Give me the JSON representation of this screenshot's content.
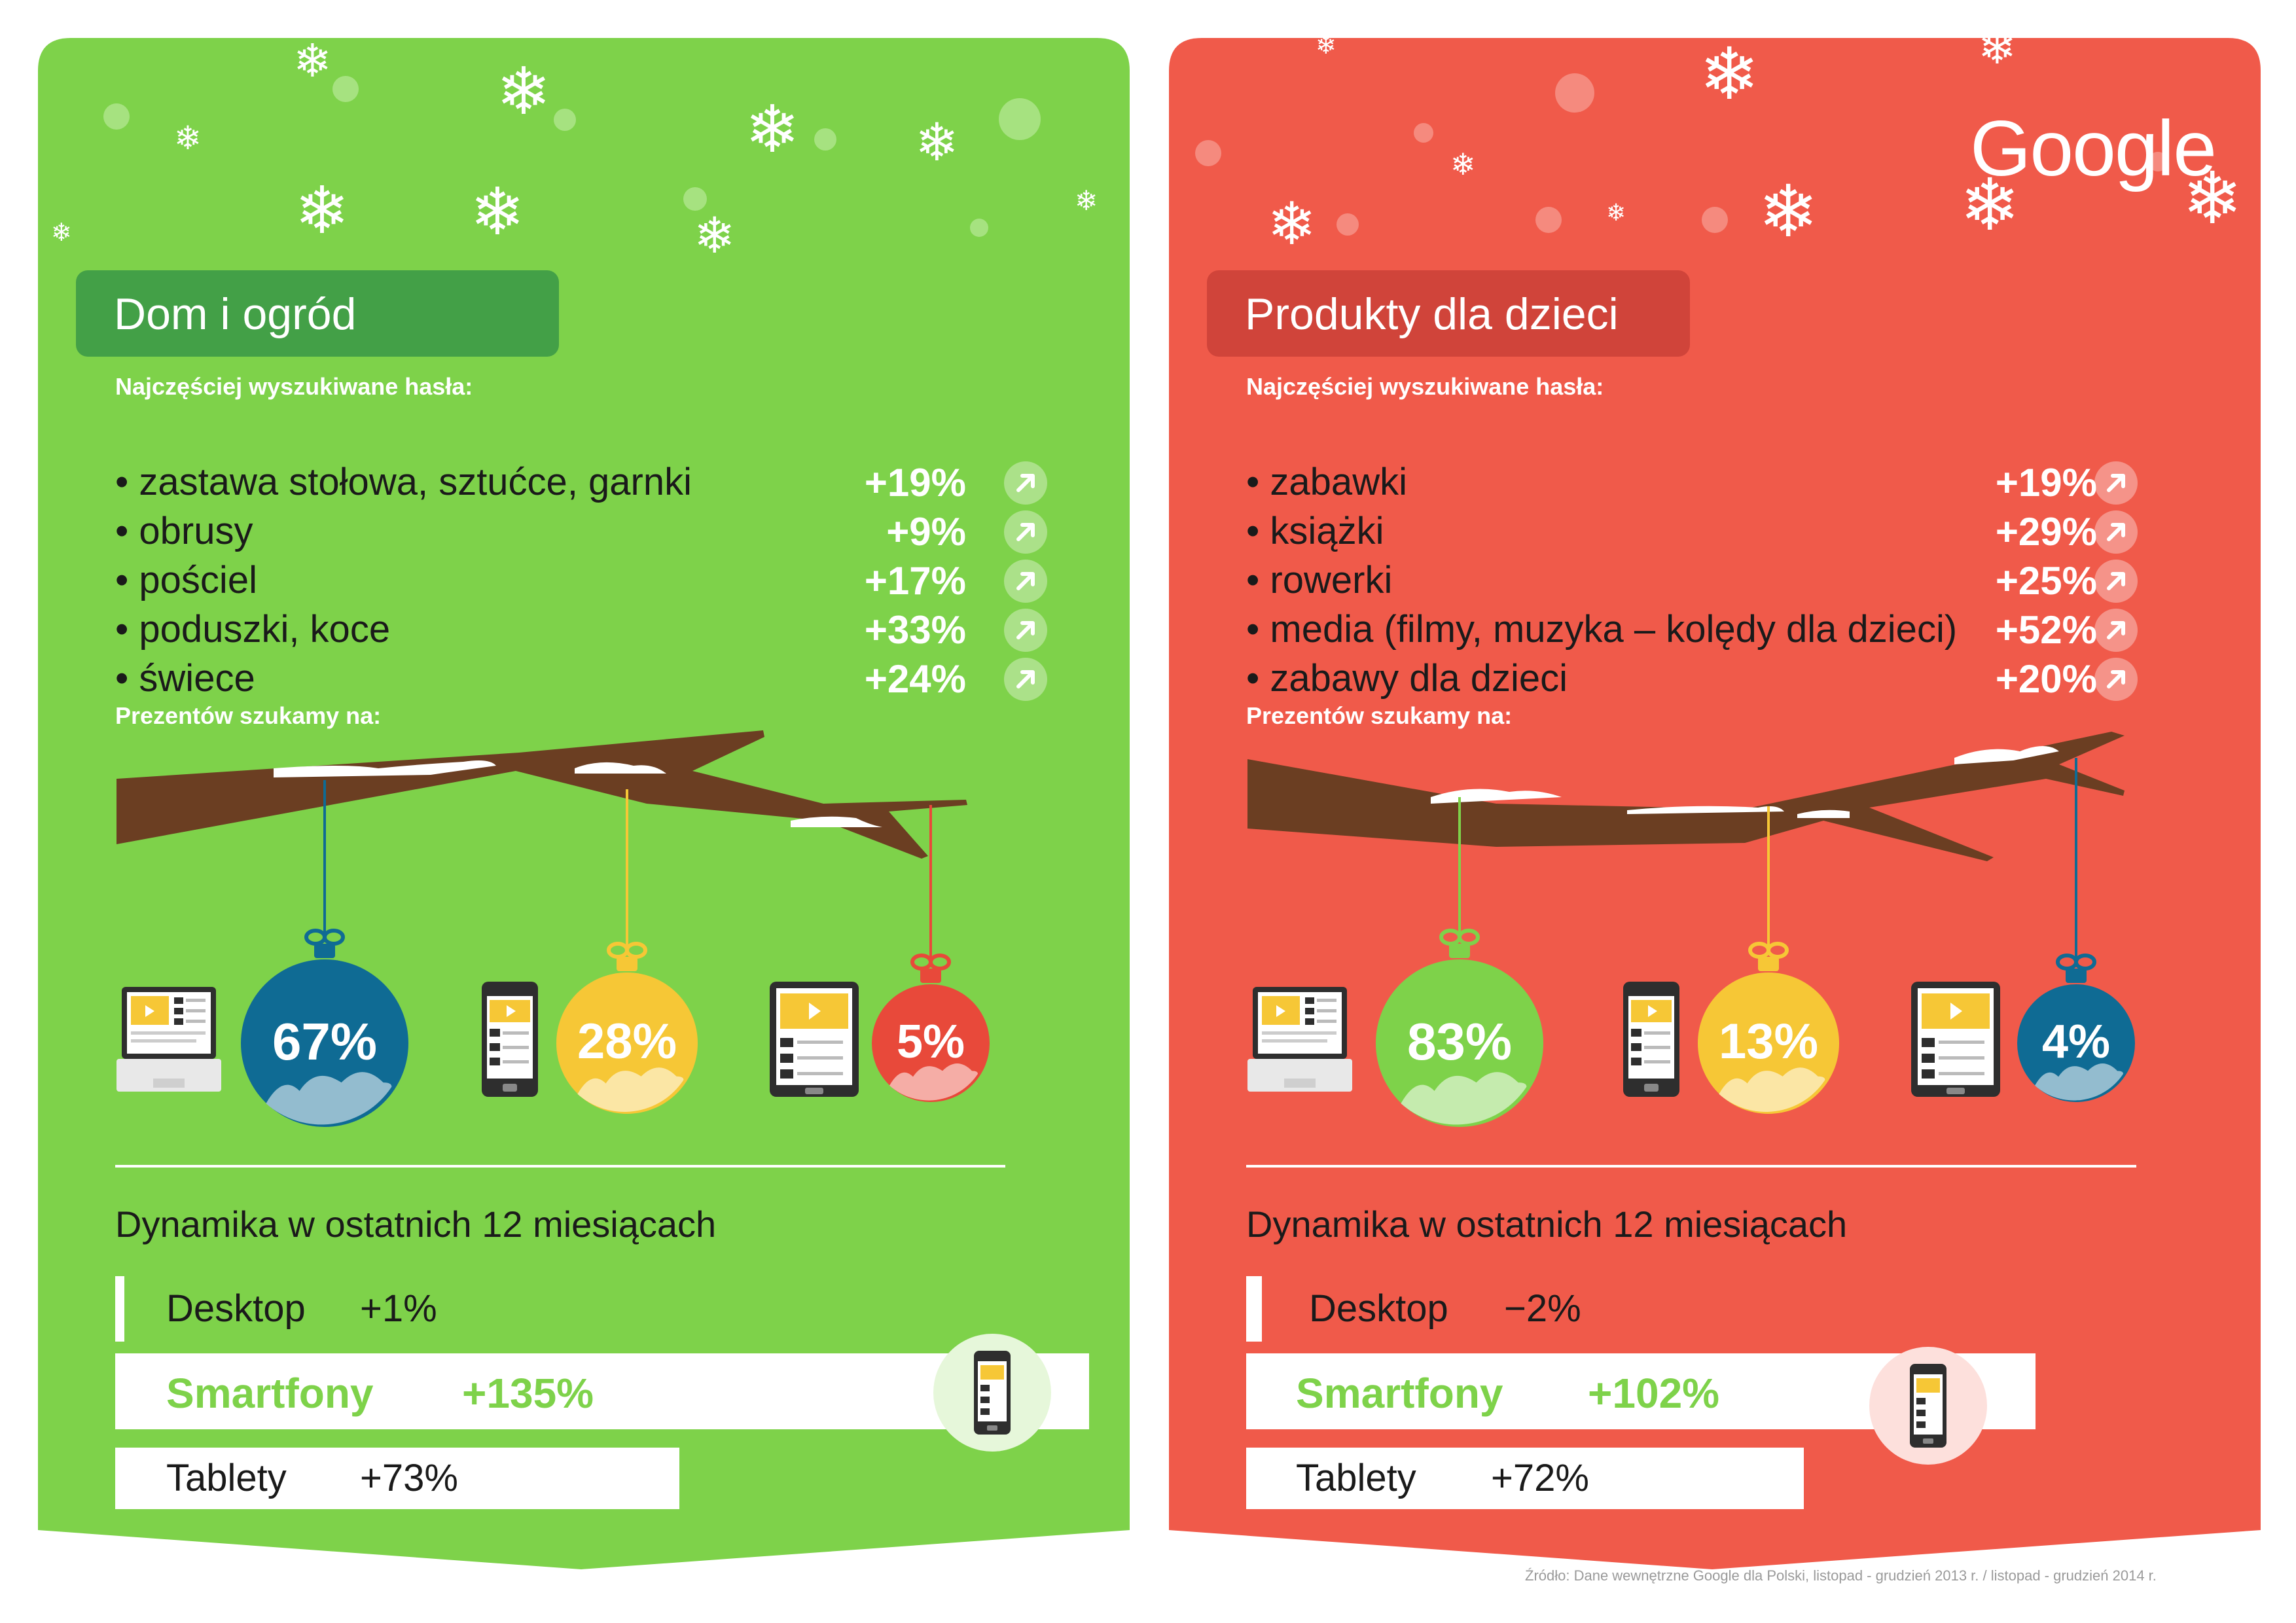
{
  "colors": {
    "green": "#7ed24a",
    "green_dark": "#43a047",
    "red": "#f05a4a",
    "red_dark": "#d0443a",
    "text": "#1a1a1a",
    "white": "#ffffff"
  },
  "logo": "Google",
  "left": {
    "title": "Dom i ogród",
    "keywords_heading": "Najczęściej wyszukiwane hasła:",
    "keywords": [
      {
        "label": "• zastawa stołowa, sztućce, garnki",
        "pct": "+19%"
      },
      {
        "label": "• obrusy",
        "pct": "+9%"
      },
      {
        "label": "• pościel",
        "pct": "+17%"
      },
      {
        "label": "• poduszki, koce",
        "pct": "+33%"
      },
      {
        "label": "• świece",
        "pct": "+24%"
      }
    ],
    "devices_heading": "Prezentów szukamy na:",
    "devices": [
      {
        "device": "laptop-icon",
        "pct": "67%",
        "value": 67,
        "color": "#0f6b94"
      },
      {
        "device": "smartphone-icon",
        "pct": "28%",
        "value": 28,
        "color": "#f6c736"
      },
      {
        "device": "tablet-icon",
        "pct": "5%",
        "value": 5,
        "color": "#e8493a"
      }
    ],
    "dynamics_heading": "Dynamika w ostatnich 12 miesiącach",
    "dynamics": [
      {
        "label": "Desktop",
        "value": "+1%"
      },
      {
        "label": "Smartfony",
        "value": "+135%"
      },
      {
        "label": "Tablety",
        "value": "+73%"
      }
    ]
  },
  "right": {
    "title": "Produkty dla dzieci",
    "keywords_heading": "Najczęściej wyszukiwane hasła:",
    "keywords": [
      {
        "label": "• zabawki",
        "pct": "+19%"
      },
      {
        "label": "• książki",
        "pct": "+29%"
      },
      {
        "label": "• rowerki",
        "pct": "+25%"
      },
      {
        "label": "• media (filmy, muzyka – kolędy dla dzieci)",
        "pct": "+52%"
      },
      {
        "label": "• zabawy dla dzieci",
        "pct": "+20%"
      }
    ],
    "devices_heading": "Prezentów szukamy na:",
    "devices": [
      {
        "device": "laptop-icon",
        "pct": "83%",
        "value": 83,
        "color": "#7ed24a"
      },
      {
        "device": "smartphone-icon",
        "pct": "13%",
        "value": 13,
        "color": "#f6c736"
      },
      {
        "device": "tablet-icon",
        "pct": "4%",
        "value": 4,
        "color": "#0f6b94"
      }
    ],
    "dynamics_heading": "Dynamika w ostatnich 12 miesiącach",
    "dynamics": [
      {
        "label": "Desktop",
        "value": "−2%"
      },
      {
        "label": "Smartfony",
        "value": "+102%"
      },
      {
        "label": "Tablety",
        "value": "+72%"
      }
    ]
  },
  "source": "Źródło: Dane wewnętrzne Google dla Polski, listopad - grudzień 2013 r. / listopad - grudzień 2014 r."
}
